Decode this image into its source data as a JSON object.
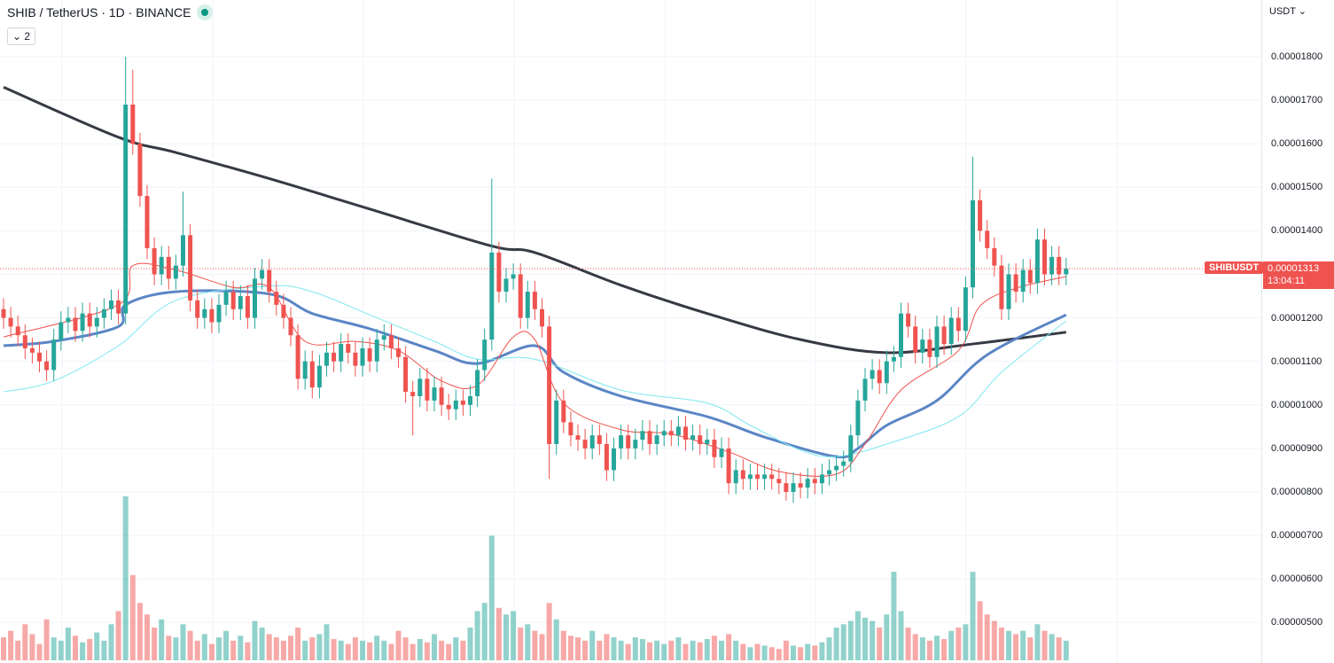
{
  "header": {
    "symbol_title": "SHIB / TetherUS · 1D · BINANCE",
    "indicators_toggle": "⌄ 2",
    "market_status_color": "#089981"
  },
  "axis": {
    "currency": "USDT ⌄"
  },
  "chart_data": {
    "type": "candlestick",
    "price_unit": "USDT",
    "ylim": [
      4.4e-06,
      1.93e-05
    ],
    "yticks": [
      "0.00001800",
      "0.00001700",
      "0.00001600",
      "0.00001500",
      "0.00001400",
      "0.00001200",
      "0.00001100",
      "0.00001000",
      "0.00000900",
      "0.00000800",
      "0.00000700",
      "0.00000600",
      "0.00000500"
    ],
    "ytick_values": [
      18,
      17,
      16,
      15,
      14,
      12,
      11,
      10,
      9,
      8,
      7,
      6,
      5
    ],
    "price_scale": "1e-6",
    "first_open": 12.2,
    "closes": [
      12.0,
      11.8,
      11.6,
      11.3,
      11.2,
      11.0,
      10.8,
      11.5,
      11.9,
      12.0,
      11.7,
      12.1,
      11.8,
      12.0,
      12.2,
      12.4,
      12.1,
      16.9,
      16.0,
      14.8,
      13.6,
      13.0,
      13.4,
      12.9,
      13.2,
      13.9,
      12.4,
      12.0,
      12.2,
      11.9,
      12.3,
      12.6,
      12.2,
      12.5,
      12.0,
      12.9,
      13.1,
      12.6,
      12.3,
      12.0,
      11.6,
      10.6,
      11.0,
      10.4,
      10.9,
      11.2,
      11.0,
      11.4,
      11.2,
      10.9,
      11.3,
      11.0,
      11.5,
      11.6,
      11.3,
      11.1,
      10.3,
      10.2,
      10.6,
      10.1,
      10.4,
      10.0,
      9.9,
      10.1,
      10.0,
      10.2,
      10.8,
      11.5,
      13.5,
      12.6,
      12.9,
      13.0,
      12.0,
      12.6,
      12.2,
      11.8,
      9.1,
      10.1,
      9.6,
      9.3,
      9.2,
      9.0,
      9.3,
      9.1,
      8.5,
      9.0,
      9.3,
      9.0,
      9.2,
      9.4,
      9.1,
      9.3,
      9.4,
      9.3,
      9.5,
      9.2,
      9.3,
      9.1,
      9.2,
      8.8,
      9.0,
      8.2,
      8.5,
      8.3,
      8.4,
      8.3,
      8.4,
      8.3,
      8.2,
      8.0,
      8.2,
      8.1,
      8.3,
      8.2,
      8.4,
      8.5,
      8.6,
      8.7,
      9.3,
      10.1,
      10.6,
      10.8,
      10.5,
      11.0,
      11.1,
      12.1,
      11.8,
      11.2,
      11.5,
      11.1,
      11.8,
      11.4,
      12.0,
      11.7,
      12.7,
      14.7,
      14.0,
      13.6,
      13.2,
      12.2,
      13.0,
      12.6,
      13.1,
      12.8,
      13.8,
      13.0,
      13.4,
      13.0,
      13.13
    ],
    "notable_wicks": [
      {
        "bar": 17,
        "high": 18.0
      },
      {
        "bar": 18,
        "high": 17.7
      },
      {
        "bar": 25,
        "high": 14.9
      },
      {
        "bar": 57,
        "low": 9.3
      },
      {
        "bar": 68,
        "high": 15.2
      },
      {
        "bar": 76,
        "low": 8.3
      },
      {
        "bar": 109,
        "low": 7.8
      },
      {
        "bar": 135,
        "high": 15.7
      }
    ],
    "volume": [
      14,
      18,
      12,
      22,
      16,
      10,
      25,
      14,
      12,
      20,
      15,
      11,
      13,
      17,
      12,
      22,
      30,
      100,
      52,
      35,
      28,
      20,
      25,
      15,
      14,
      22,
      18,
      12,
      16,
      10,
      14,
      18,
      12,
      15,
      11,
      24,
      20,
      16,
      14,
      12,
      15,
      20,
      12,
      14,
      16,
      22,
      13,
      12,
      10,
      14,
      12,
      11,
      15,
      12,
      10,
      18,
      14,
      10,
      13,
      11,
      16,
      12,
      10,
      14,
      12,
      20,
      30,
      35,
      76,
      32,
      28,
      30,
      20,
      22,
      18,
      16,
      35,
      25,
      18,
      15,
      14,
      12,
      18,
      12,
      16,
      14,
      12,
      10,
      14,
      13,
      11,
      12,
      10,
      12,
      14,
      10,
      12,
      11,
      13,
      15,
      12,
      16,
      12,
      10,
      8,
      10,
      9,
      8,
      7,
      12,
      9,
      8,
      10,
      9,
      11,
      14,
      20,
      22,
      24,
      30,
      26,
      24,
      20,
      28,
      54,
      30,
      20,
      16,
      14,
      12,
      15,
      13,
      18,
      20,
      22,
      54,
      36,
      28,
      24,
      20,
      18,
      16,
      18,
      14,
      22,
      18,
      16,
      14,
      12
    ],
    "ma_lines": [
      {
        "color": "#363a45",
        "width": 3,
        "points": [
          [
            0,
            17.3
          ],
          [
            16,
            16.15
          ],
          [
            24,
            15.8
          ],
          [
            37,
            15.2
          ],
          [
            51,
            14.5
          ],
          [
            68,
            13.65
          ],
          [
            74,
            13.5
          ],
          [
            86,
            12.75
          ],
          [
            98,
            12.1
          ],
          [
            111,
            11.5
          ],
          [
            123,
            11.2
          ],
          [
            135,
            11.4
          ],
          [
            148,
            11.67
          ]
        ]
      },
      {
        "color": "#5b86c5",
        "width": 3,
        "points": [
          [
            0,
            11.36
          ],
          [
            7,
            11.46
          ],
          [
            16,
            11.8
          ],
          [
            17,
            12.3
          ],
          [
            24,
            12.6
          ],
          [
            37,
            12.55
          ],
          [
            43,
            12.1
          ],
          [
            51,
            11.75
          ],
          [
            60,
            11.25
          ],
          [
            66,
            10.95
          ],
          [
            74,
            11.36
          ],
          [
            78,
            10.75
          ],
          [
            86,
            10.2
          ],
          [
            98,
            9.73
          ],
          [
            106,
            9.26
          ],
          [
            116,
            8.81
          ],
          [
            119,
            9.0
          ],
          [
            123,
            9.53
          ],
          [
            130,
            10.1
          ],
          [
            137,
            11.15
          ],
          [
            148,
            12.07
          ]
        ]
      },
      {
        "color": "#7ee8ef",
        "width": 1,
        "points": [
          [
            0,
            10.3
          ],
          [
            7,
            10.55
          ],
          [
            16,
            11.36
          ],
          [
            24,
            12.4
          ],
          [
            37,
            12.73
          ],
          [
            43,
            12.6
          ],
          [
            51,
            12.07
          ],
          [
            60,
            11.46
          ],
          [
            66,
            11.05
          ],
          [
            74,
            11.05
          ],
          [
            86,
            10.34
          ],
          [
            98,
            10.04
          ],
          [
            104,
            9.53
          ],
          [
            111,
            8.96
          ],
          [
            116,
            8.81
          ],
          [
            123,
            9.1
          ],
          [
            133,
            9.73
          ],
          [
            139,
            10.75
          ],
          [
            148,
            11.93
          ]
        ]
      },
      {
        "color": "#f0504a",
        "width": 1,
        "points": [
          [
            0,
            11.56
          ],
          [
            16,
            12.3
          ],
          [
            18,
            13.2
          ],
          [
            24,
            13.1
          ],
          [
            32,
            12.7
          ],
          [
            37,
            12.7
          ],
          [
            42,
            11.46
          ],
          [
            49,
            11.46
          ],
          [
            55,
            11.25
          ],
          [
            61,
            10.55
          ],
          [
            66,
            10.45
          ],
          [
            71,
            11.56
          ],
          [
            74,
            11.5
          ],
          [
            78,
            10.04
          ],
          [
            86,
            9.43
          ],
          [
            93,
            9.33
          ],
          [
            101,
            8.92
          ],
          [
            108,
            8.47
          ],
          [
            116,
            8.41
          ],
          [
            120,
            9.1
          ],
          [
            125,
            10.34
          ],
          [
            133,
            11.25
          ],
          [
            136,
            12.27
          ],
          [
            141,
            12.68
          ],
          [
            148,
            12.95
          ]
        ]
      }
    ],
    "last_price": {
      "symbol": "SHIBUSDT",
      "value": "0.00001313",
      "countdown": "13:04:11"
    },
    "colors": {
      "up": "#26a69a",
      "down": "#ef5350"
    }
  }
}
